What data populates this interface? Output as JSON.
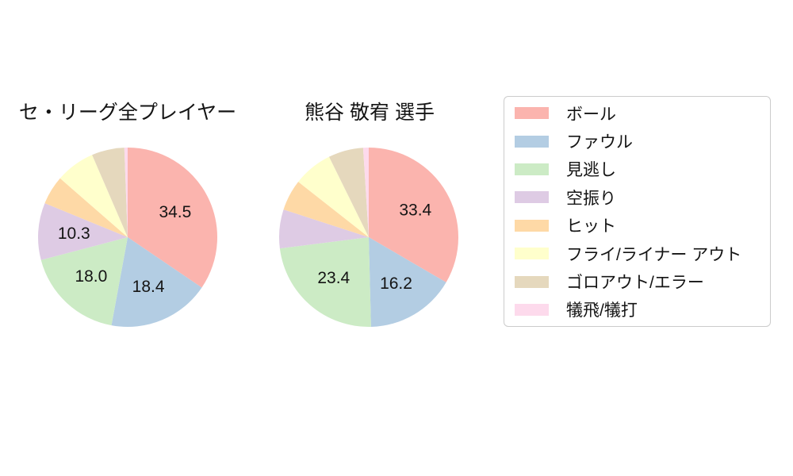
{
  "page": {
    "background": "#ffffff",
    "text_color": "#141414",
    "legend_border_color": "#cccccc"
  },
  "legend": {
    "items": [
      {
        "label": "ボール",
        "color": "#fbb4ae"
      },
      {
        "label": "ファウル",
        "color": "#b3cde3"
      },
      {
        "label": "見逃し",
        "color": "#ccebc5"
      },
      {
        "label": "空振り",
        "color": "#decbe4"
      },
      {
        "label": "ヒット",
        "color": "#fed9a6"
      },
      {
        "label": "フライ/ライナー アウト",
        "color": "#ffffcc"
      },
      {
        "label": "ゴロアウト/エラー",
        "color": "#e5d8bd"
      },
      {
        "label": "犠飛/犠打",
        "color": "#fddaec"
      }
    ],
    "position": "right"
  },
  "chart_data": [
    {
      "type": "pie",
      "title": "セ・リーグ全プレイヤー",
      "categories": [
        "ボール",
        "ファウル",
        "見逃し",
        "空振り",
        "ヒット",
        "フライ/ライナー アウト",
        "ゴロアウト/エラー",
        "犠飛/犠打"
      ],
      "values": [
        34.5,
        18.4,
        18.0,
        10.3,
        5.2,
        7.1,
        5.9,
        0.6
      ],
      "shown_value_labels": [
        "34.5",
        "18.4",
        "18.0",
        "10.3"
      ],
      "colors": [
        "#fbb4ae",
        "#b3cde3",
        "#ccebc5",
        "#decbe4",
        "#fed9a6",
        "#ffffcc",
        "#e5d8bd",
        "#fddaec"
      ],
      "start_angle_deg": 90,
      "direction": "clockwise",
      "label_min_pct": 10,
      "pct_distance": 0.6
    },
    {
      "type": "pie",
      "title": "熊谷 敬宥 選手",
      "categories": [
        "ボール",
        "ファウル",
        "見逃し",
        "空振り",
        "ヒット",
        "フライ/ライナー アウト",
        "ゴロアウト/エラー",
        "犠飛/犠打"
      ],
      "values": [
        33.4,
        16.2,
        23.4,
        7.0,
        5.6,
        7.1,
        6.3,
        1.0
      ],
      "shown_value_labels": [
        "33.4",
        "16.2",
        "23.4"
      ],
      "colors": [
        "#fbb4ae",
        "#b3cde3",
        "#ccebc5",
        "#decbe4",
        "#fed9a6",
        "#ffffcc",
        "#e5d8bd",
        "#fddaec"
      ],
      "start_angle_deg": 90,
      "direction": "clockwise",
      "label_min_pct": 10,
      "pct_distance": 0.6
    }
  ]
}
